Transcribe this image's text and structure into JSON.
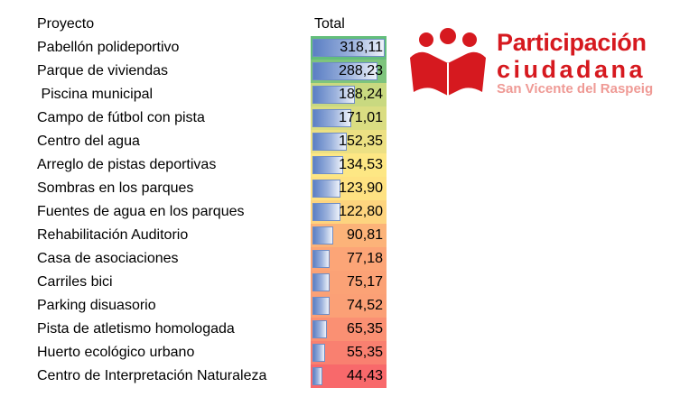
{
  "header": {
    "project": "Proyecto",
    "total": "Total"
  },
  "chart_data": {
    "type": "table",
    "columns": [
      "Proyecto",
      "Total"
    ],
    "max": 318.11,
    "rows": [
      {
        "name": "Pabellón polideportivo",
        "value": 318.11,
        "label": "318,11",
        "color": "#63be7b"
      },
      {
        "name": "Parque de viviendas",
        "value": 288.23,
        "label": "288,23",
        "color": "#7ec47d"
      },
      {
        "name": " Piscina municipal",
        "value": 188.24,
        "label": "188,24",
        "color": "#c9d980"
      },
      {
        "name": "Campo de fútbol con pista",
        "value": 171.01,
        "label": "171,01",
        "color": "#dadd82"
      },
      {
        "name": "Centro del agua",
        "value": 152.35,
        "label": "152,35",
        "color": "#ece083"
      },
      {
        "name": "Arreglo de pistas deportivas",
        "value": 134.53,
        "label": "134,53",
        "color": "#fde784"
      },
      {
        "name": "Sombras en los parques",
        "value": 123.9,
        "label": "123,90",
        "color": "#fee282"
      },
      {
        "name": "Fuentes de agua en los parques",
        "value": 122.8,
        "label": "122,80",
        "color": "#fdd47f"
      },
      {
        "name": "Rehabilitación Auditorio",
        "value": 90.81,
        "label": "90,81",
        "color": "#fcb379"
      },
      {
        "name": "Casa de asociaciones",
        "value": 77.18,
        "label": "77,18",
        "color": "#fca577"
      },
      {
        "name": "Carriles bici",
        "value": 75.17,
        "label": "75,17",
        "color": "#fba276"
      },
      {
        "name": "Parking disuasorio",
        "value": 74.52,
        "label": "74,52",
        "color": "#fba076"
      },
      {
        "name": "Pista de atletismo homologada",
        "value": 65.35,
        "label": "65,35",
        "color": "#fa9073"
      },
      {
        "name": "Huerto ecológico urbano",
        "value": 55.35,
        "label": "55,35",
        "color": "#f98070"
      },
      {
        "name": "Centro de Interpretación Naturaleza",
        "value": 44.43,
        "label": "44,43",
        "color": "#f8696b"
      }
    ]
  },
  "logo": {
    "line1": "Participación",
    "line2": "ciudadana",
    "line3": "San Vicente del Raspeig",
    "color": "#d6191f"
  }
}
